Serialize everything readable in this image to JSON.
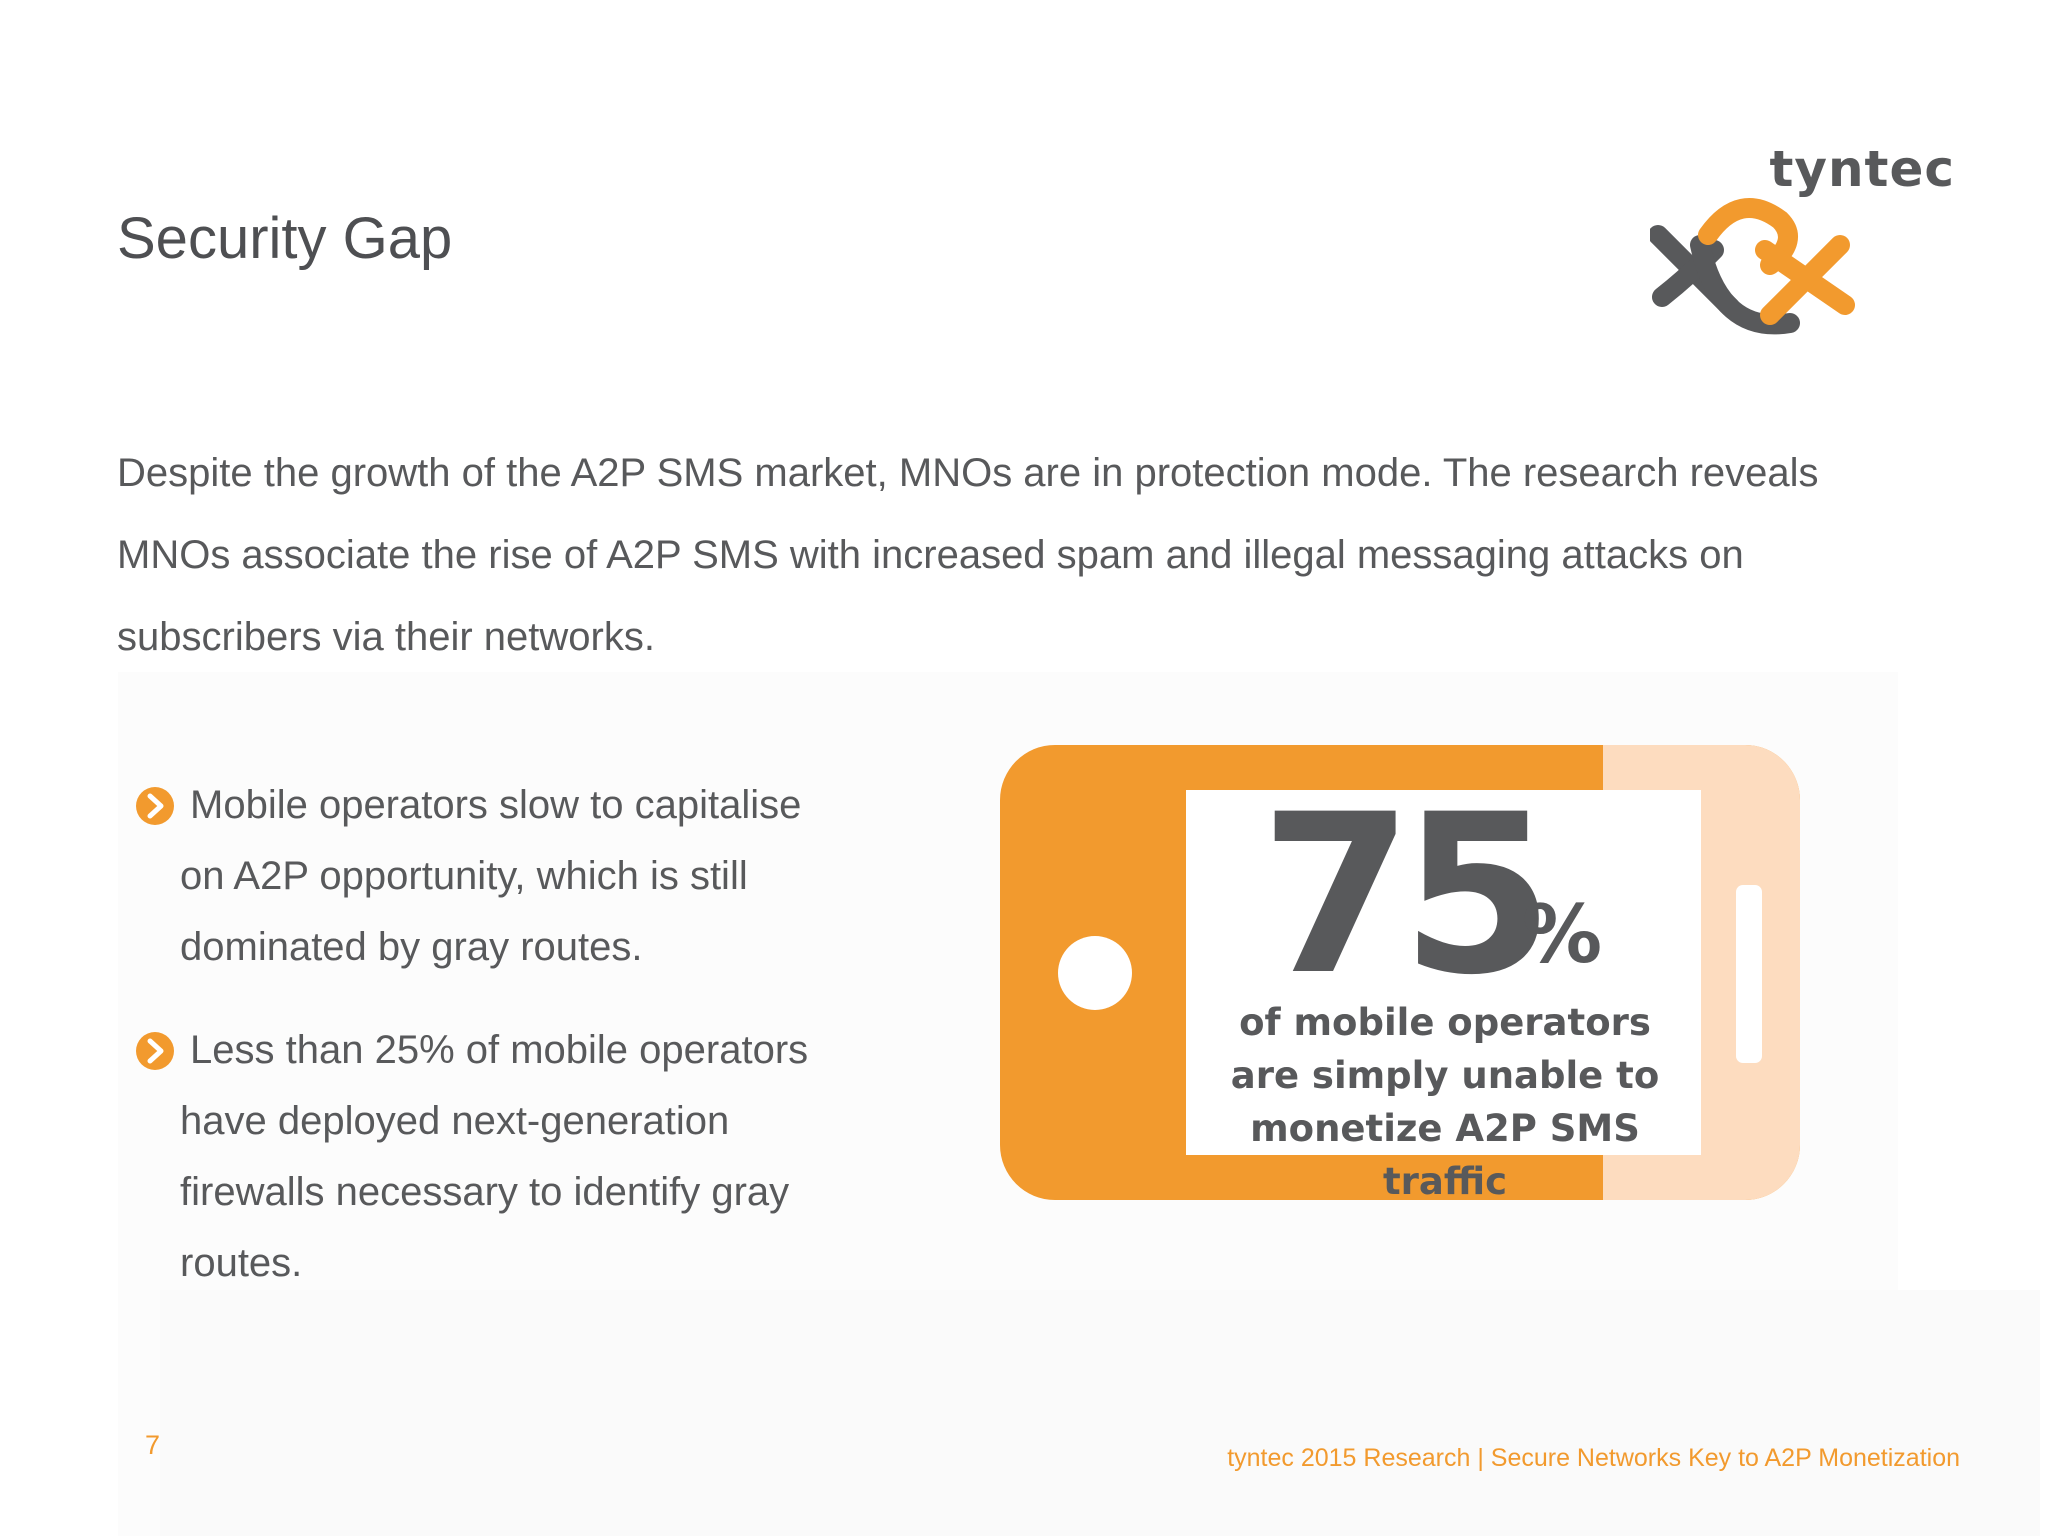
{
  "slide": {
    "title": "Security Gap",
    "intro": "Despite the growth of the A2P SMS market, MNOs are in protection mode. The research reveals MNOs associate the rise of A2P SMS with increased spam and illegal messaging attacks on subscribers via their networks.",
    "bullets": [
      {
        "icon": "chevron-right-circle-icon",
        "lines": [
          "Mobile operators slow to capitalise",
          "on A2P opportunity, which is still",
          "dominated by gray routes."
        ]
      },
      {
        "icon": "chevron-right-circle-icon",
        "lines": [
          "Less than 25% of mobile operators",
          "have deployed next-generation",
          "firewalls necessary to identify gray",
          "routes."
        ]
      }
    ]
  },
  "logo": {
    "text": "tyntec",
    "icon": "tyntec-logo-mark"
  },
  "stat": {
    "number": "75",
    "unit": "%",
    "caption_lines": [
      "of mobile operators",
      "are simply unable to",
      "monetize A2P SMS traffic"
    ]
  },
  "footer": {
    "page_number": "7",
    "text": "tyntec 2015 Research | Secure Networks Key to A2P Monetization"
  },
  "colors": {
    "accent": "#f29a2e",
    "accent_light": "#fddcbf",
    "text": "#58595b"
  }
}
